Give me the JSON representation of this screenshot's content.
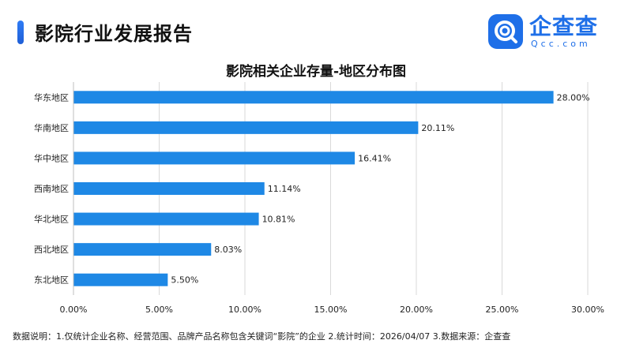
{
  "header": {
    "title": "影院行业发展报告",
    "logo_cn": "企查查",
    "logo_en": "Qcc.com",
    "accent_color": "#1e6fe8",
    "logo_icon": "magnifier-q-icon"
  },
  "chart_data": {
    "type": "bar",
    "orientation": "horizontal",
    "title": "影院相关企业存量-地区分布图",
    "categories": [
      "华东地区",
      "华南地区",
      "华中地区",
      "西南地区",
      "华北地区",
      "西北地区",
      "东北地区"
    ],
    "values": [
      28.0,
      20.11,
      16.41,
      11.14,
      10.81,
      8.03,
      5.5
    ],
    "value_labels": [
      "28.00%",
      "20.11%",
      "16.41%",
      "11.14%",
      "10.81%",
      "8.03%",
      "5.50%"
    ],
    "xlim": [
      0,
      30
    ],
    "ticks": [
      0,
      5,
      10,
      15,
      20,
      25,
      30
    ],
    "tick_labels": [
      "0.00%",
      "5.00%",
      "10.00%",
      "15.00%",
      "20.00%",
      "25.00%",
      "30.00%"
    ],
    "bar_color": "#1e88e5",
    "grid": "vertical"
  },
  "footnote": "数据说明：1.仅统计企业名称、经营范围、品牌产品名称包含关键词“影院”的企业  2.统计时间：2026/04/07   3.数据来源：企查查"
}
